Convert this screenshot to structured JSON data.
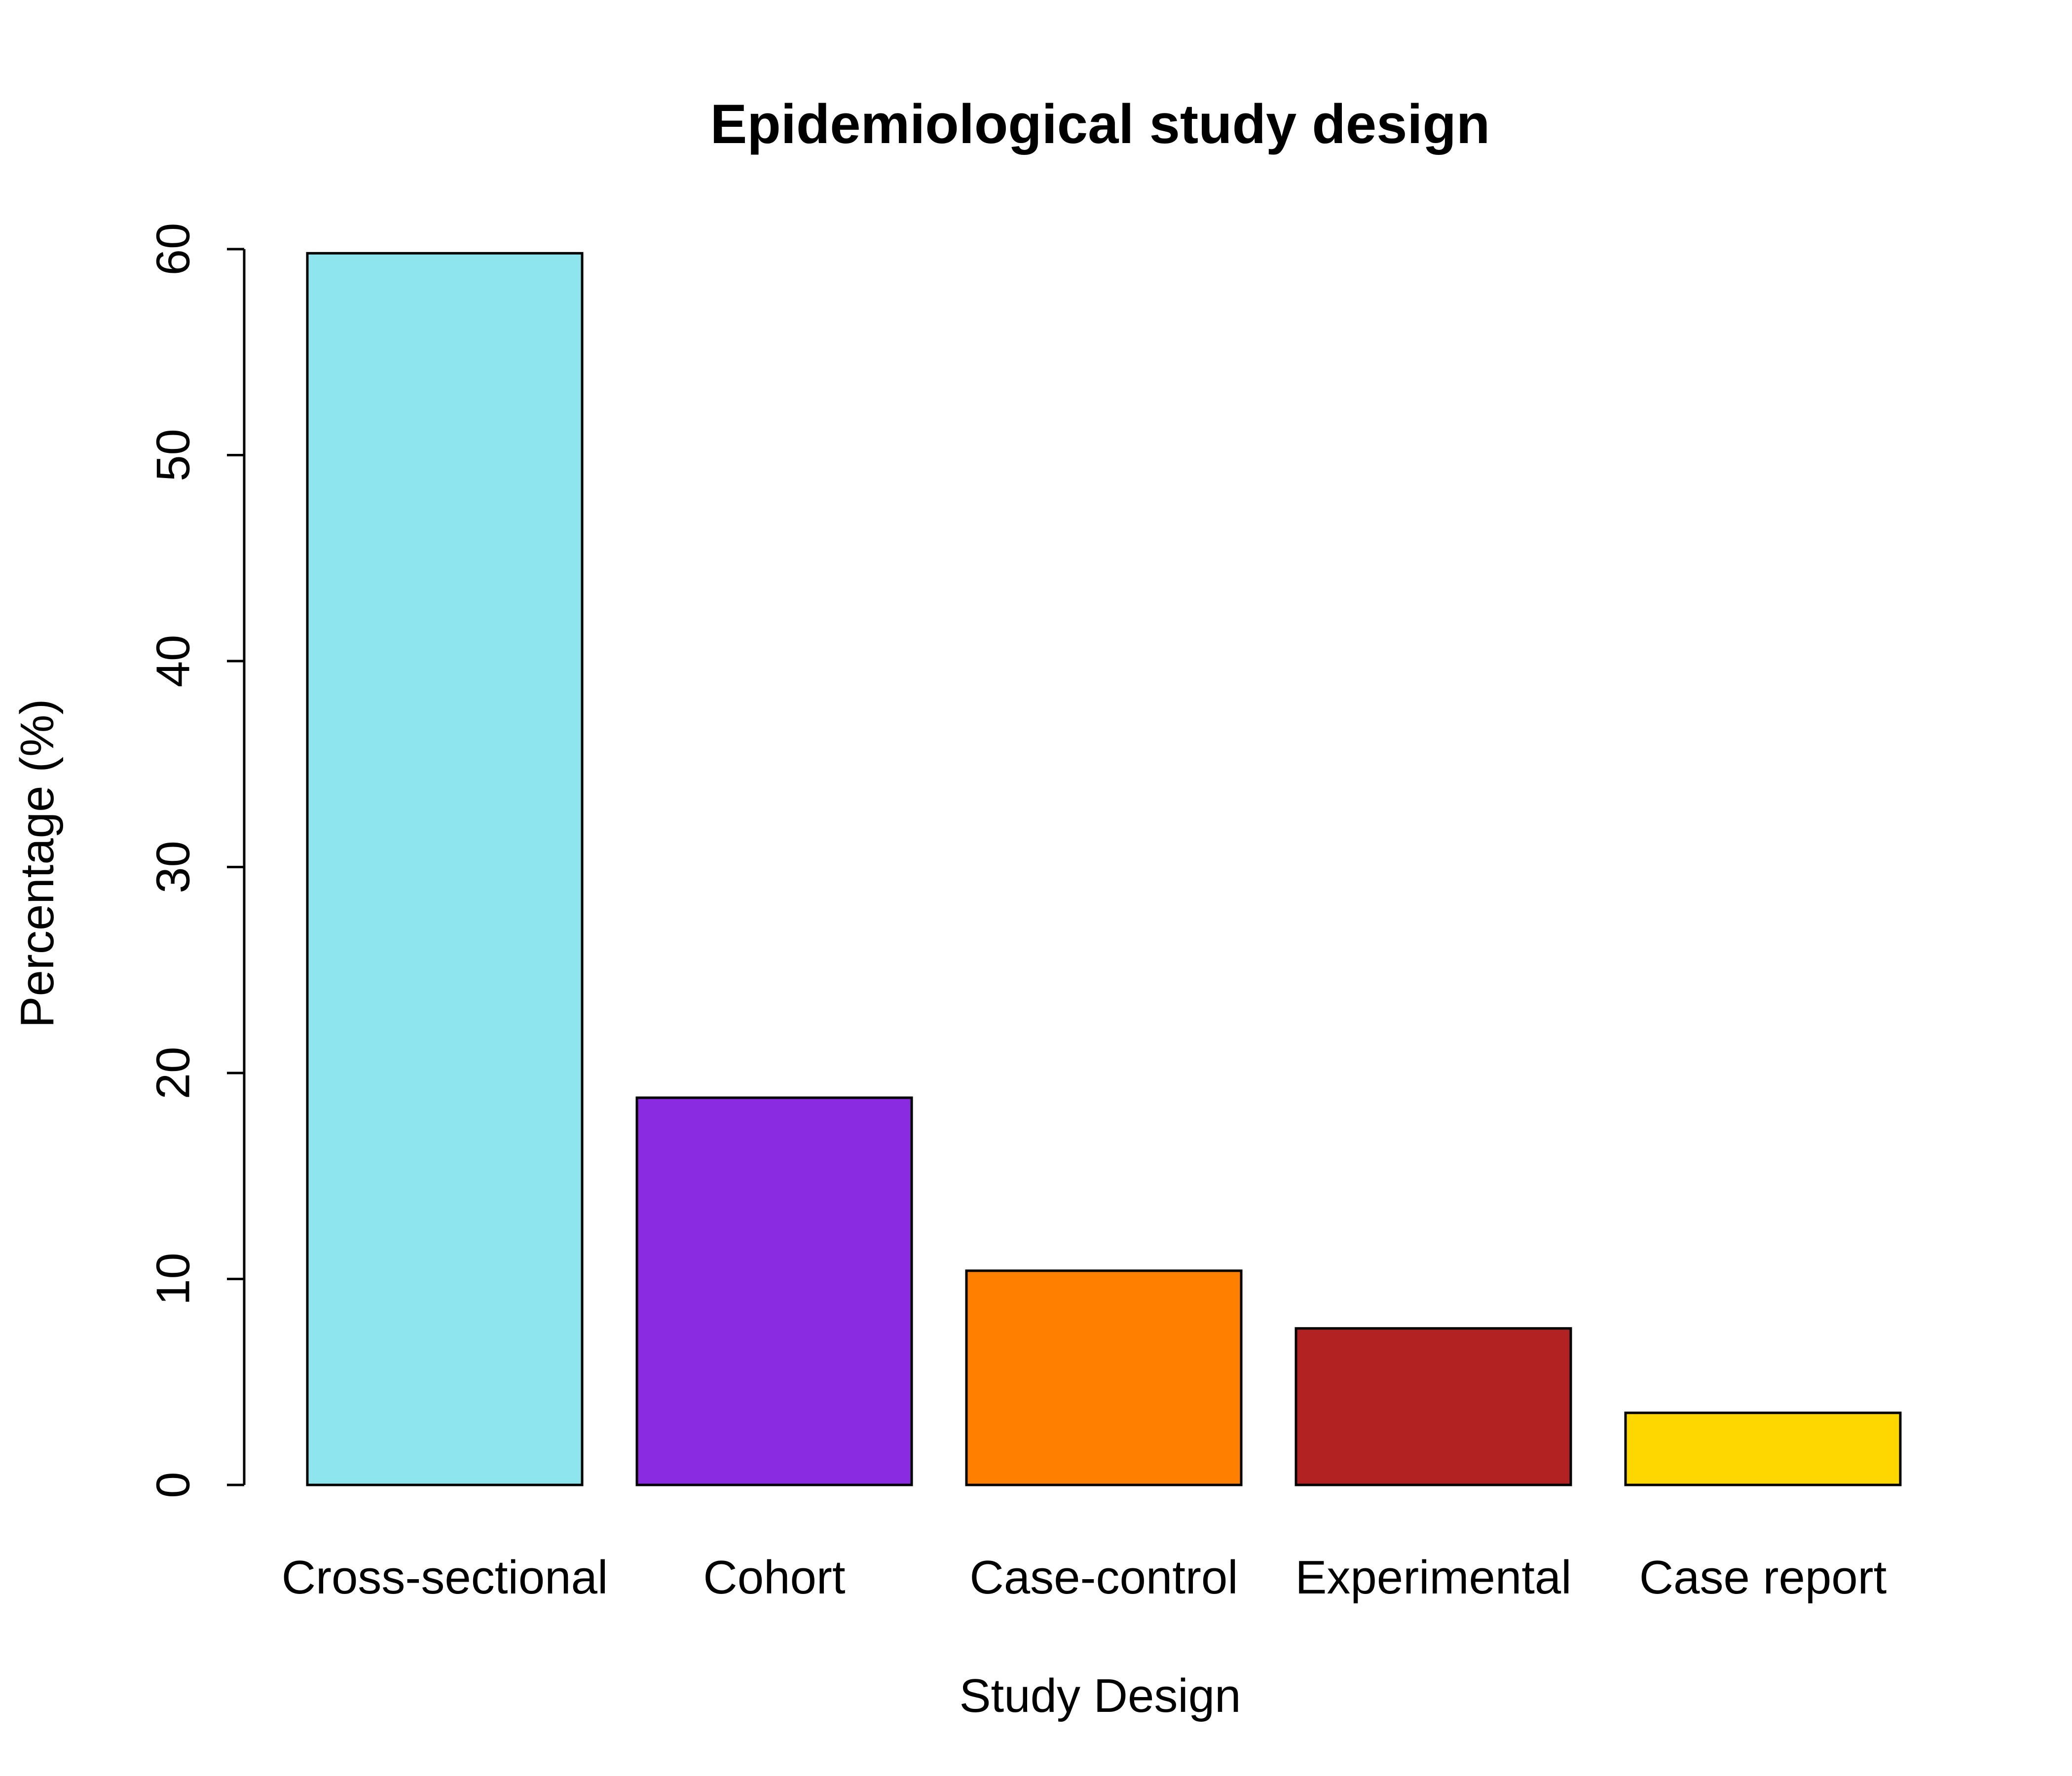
{
  "chart_data": {
    "type": "bar",
    "title": "Epidemiological study design",
    "xlabel": "Study Design",
    "ylabel": "Percentage (%)",
    "categories": [
      "Cross-sectional",
      "Cohort",
      "Case-control",
      "Experimental",
      "Case report"
    ],
    "values": [
      59.8,
      18.8,
      10.4,
      7.6,
      3.5
    ],
    "colors": [
      "#8EE5EE",
      "#8A2BE2",
      "#FF7F00",
      "#B22222",
      "#FFD700"
    ],
    "ylim": [
      0,
      60
    ],
    "yticks": [
      0,
      10,
      20,
      30,
      40,
      50,
      60
    ],
    "ytick_labels": [
      "0",
      "10",
      "20",
      "30",
      "40",
      "50",
      "60"
    ],
    "grid": false,
    "legend": "none",
    "bar_border_color": "#000000"
  }
}
